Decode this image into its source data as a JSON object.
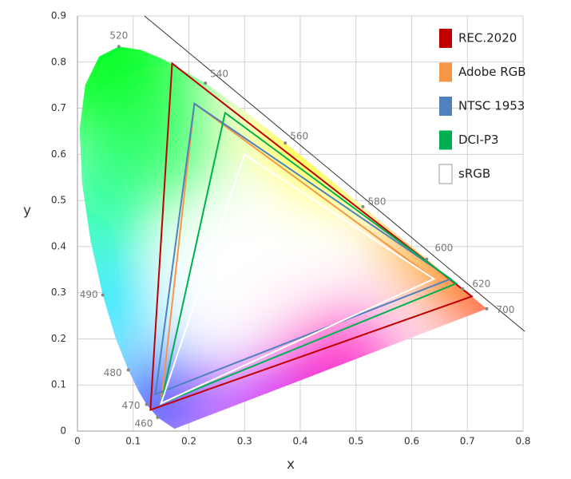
{
  "chart_data": {
    "type": "chromaticity",
    "x_label": "x",
    "y_label": "y",
    "xlim": [
      0,
      0.8
    ],
    "ylim": [
      0,
      0.9
    ],
    "xticks": [
      0,
      0.1,
      0.2,
      0.3,
      0.4,
      0.5,
      0.6,
      0.7,
      0.8
    ],
    "yticks": [
      0,
      0.1,
      0.2,
      0.3,
      0.4,
      0.5,
      0.6,
      0.7,
      0.8,
      0.9
    ],
    "grid": true,
    "legend": "top-right",
    "locus": {
      "x": [
        0.1741,
        0.144,
        0.1241,
        0.1096,
        0.0913,
        0.0687,
        0.0454,
        0.0235,
        0.0082,
        0.0039,
        0.0139,
        0.0389,
        0.0743,
        0.1142,
        0.1547,
        0.2296,
        0.3016,
        0.3731,
        0.4441,
        0.5125,
        0.5752,
        0.627,
        0.6658,
        0.6915,
        0.7347
      ],
      "y": [
        0.005,
        0.0297,
        0.0578,
        0.0868,
        0.1327,
        0.2007,
        0.295,
        0.4127,
        0.5384,
        0.6548,
        0.7502,
        0.812,
        0.8338,
        0.8262,
        0.8059,
        0.7543,
        0.6923,
        0.6245,
        0.5547,
        0.4866,
        0.4242,
        0.3725,
        0.334,
        0.3083,
        0.2653
      ]
    },
    "wavelengths": [
      {
        "text": "460",
        "x": 0.144,
        "y": 0.0297
      },
      {
        "text": "470",
        "x": 0.1241,
        "y": 0.0578
      },
      {
        "text": "480",
        "x": 0.0913,
        "y": 0.1327
      },
      {
        "text": "490",
        "x": 0.0454,
        "y": 0.295
      },
      {
        "text": "520",
        "x": 0.0743,
        "y": 0.8338
      },
      {
        "text": "540",
        "x": 0.2296,
        "y": 0.7543
      },
      {
        "text": "560",
        "x": 0.3731,
        "y": 0.6245
      },
      {
        "text": "580",
        "x": 0.5125,
        "y": 0.4866
      },
      {
        "text": "600",
        "x": 0.627,
        "y": 0.3725
      },
      {
        "text": "620",
        "x": 0.6915,
        "y": 0.3083
      },
      {
        "text": "700",
        "x": 0.7347,
        "y": 0.2653
      }
    ],
    "series": [
      {
        "name": "REC.2020",
        "color": "#c00000",
        "x": [
          0.708,
          0.17,
          0.131
        ],
        "y": [
          0.292,
          0.797,
          0.046
        ]
      },
      {
        "name": "Adobe RGB",
        "color": "#f79646",
        "x": [
          0.64,
          0.21,
          0.15
        ],
        "y": [
          0.33,
          0.71,
          0.06
        ]
      },
      {
        "name": "NTSC 1953",
        "color": "#4f81bd",
        "x": [
          0.67,
          0.21,
          0.14
        ],
        "y": [
          0.33,
          0.71,
          0.08
        ]
      },
      {
        "name": "DCI-P3",
        "color": "#00b050",
        "x": [
          0.68,
          0.265,
          0.15
        ],
        "y": [
          0.32,
          0.69,
          0.06
        ]
      },
      {
        "name": "sRGB",
        "color": "#ffffff",
        "x": [
          0.64,
          0.3,
          0.15
        ],
        "y": [
          0.33,
          0.6,
          0.06
        ]
      }
    ]
  }
}
